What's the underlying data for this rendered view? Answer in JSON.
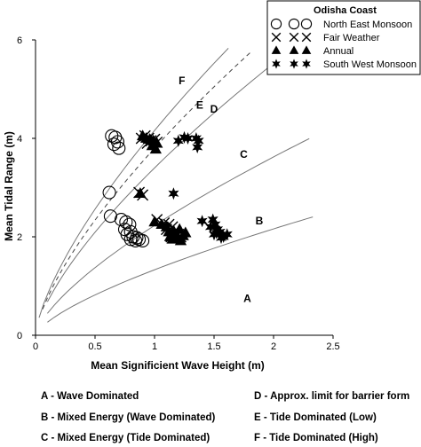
{
  "chart_data": {
    "type": "scatter",
    "xlabel": "Mean Significient Wave Height (m)",
    "ylabel": "Mean Tidal Range (m)",
    "xlim": [
      0,
      2.5
    ],
    "ylim": [
      0,
      6
    ],
    "xticks": [
      "0",
      "0.5",
      "1",
      "1.5",
      "2",
      "2.5"
    ],
    "yticks": [
      "0",
      "2",
      "4",
      "6"
    ],
    "grid": false,
    "legend": {
      "title": "Odisha Coast",
      "placement": "top-right",
      "entries": [
        {
          "label": "North East Monsoon",
          "marker": "circle-open"
        },
        {
          "label": "Fair Weather",
          "marker": "cross"
        },
        {
          "label": "Annual",
          "marker": "triangle-filled"
        },
        {
          "label": "South West Monsoon",
          "marker": "star-filled"
        }
      ]
    },
    "series": [
      {
        "name": "North East Monsoon",
        "marker": "circle-open",
        "points": [
          [
            0.64,
            4.05
          ],
          [
            0.67,
            4.02
          ],
          [
            0.69,
            3.93
          ],
          [
            0.66,
            3.88
          ],
          [
            0.7,
            3.8
          ],
          [
            0.62,
            2.9
          ],
          [
            0.63,
            2.42
          ],
          [
            0.72,
            2.35
          ],
          [
            0.76,
            2.3
          ],
          [
            0.79,
            2.25
          ],
          [
            0.75,
            2.15
          ],
          [
            0.8,
            2.1
          ],
          [
            0.77,
            2.05
          ],
          [
            0.82,
            2.0
          ],
          [
            0.85,
            1.98
          ],
          [
            0.87,
            1.95
          ],
          [
            0.8,
            1.95
          ],
          [
            0.84,
            1.92
          ],
          [
            0.9,
            1.92
          ]
        ]
      },
      {
        "name": "Fair Weather",
        "marker": "cross",
        "points": [
          [
            0.89,
            4.0
          ],
          [
            0.92,
            4.05
          ],
          [
            0.95,
            4.0
          ],
          [
            0.97,
            3.95
          ],
          [
            1.0,
            3.98
          ],
          [
            0.94,
            3.9
          ],
          [
            1.02,
            3.92
          ],
          [
            0.87,
            2.9
          ],
          [
            0.9,
            2.85
          ],
          [
            1.02,
            2.35
          ],
          [
            1.08,
            2.28
          ],
          [
            1.12,
            2.25
          ],
          [
            1.15,
            2.2
          ],
          [
            1.1,
            2.15
          ],
          [
            1.18,
            2.1
          ],
          [
            1.2,
            2.05
          ],
          [
            1.14,
            2.0
          ],
          [
            1.22,
            2.0
          ]
        ]
      },
      {
        "name": "Annual",
        "marker": "triangle-filled",
        "points": [
          [
            0.9,
            4.05
          ],
          [
            0.93,
            4.0
          ],
          [
            0.96,
            3.98
          ],
          [
            0.99,
            3.95
          ],
          [
            1.02,
            3.9
          ],
          [
            0.98,
            3.85
          ],
          [
            1.01,
            3.78
          ],
          [
            0.88,
            2.88
          ],
          [
            1.0,
            2.3
          ],
          [
            1.06,
            2.25
          ],
          [
            1.1,
            2.2
          ],
          [
            1.12,
            2.1
          ],
          [
            1.16,
            2.12
          ],
          [
            1.18,
            2.05
          ],
          [
            1.13,
            2.0
          ],
          [
            1.2,
            1.98
          ],
          [
            1.24,
            2.02
          ],
          [
            1.26,
            2.08
          ],
          [
            1.21,
            2.15
          ],
          [
            1.15,
            1.95
          ],
          [
            1.22,
            1.92
          ]
        ]
      },
      {
        "name": "South West Monsoon",
        "marker": "star-filled",
        "points": [
          [
            1.2,
            3.95
          ],
          [
            1.25,
            4.02
          ],
          [
            1.28,
            4.0
          ],
          [
            1.35,
            4.0
          ],
          [
            1.37,
            3.95
          ],
          [
            1.36,
            3.82
          ],
          [
            1.16,
            2.88
          ],
          [
            1.4,
            2.32
          ],
          [
            1.49,
            2.35
          ],
          [
            1.51,
            2.25
          ],
          [
            1.47,
            2.2
          ],
          [
            1.53,
            2.15
          ],
          [
            1.55,
            2.1
          ],
          [
            1.5,
            2.05
          ],
          [
            1.58,
            2.0
          ],
          [
            1.61,
            2.05
          ],
          [
            1.56,
            1.98
          ],
          [
            1.52,
            2.08
          ]
        ]
      }
    ],
    "boundary_curves": [
      {
        "style": "solid",
        "x_start": 0.03,
        "x_end": 1.62,
        "a": 4.16
      },
      {
        "style": "dashed",
        "x_start": 0.06,
        "x_end": 1.82,
        "a": 3.8
      },
      {
        "style": "solid",
        "x_start": 0.1,
        "x_end": 2.07,
        "a": 3.4
      },
      {
        "style": "solid",
        "x_start": 0.1,
        "x_end": 2.3,
        "a": 2.23
      },
      {
        "style": "solid",
        "x_start": 0.1,
        "x_end": 2.33,
        "a": 1.33
      }
    ],
    "region_labels": [
      {
        "text": "F",
        "x": 1.23,
        "y": 5.1
      },
      {
        "text": "E",
        "x": 1.38,
        "y": 4.6
      },
      {
        "text": "D",
        "x": 1.5,
        "y": 4.52
      },
      {
        "text": "C",
        "x": 1.75,
        "y": 3.6
      },
      {
        "text": "B",
        "x": 1.88,
        "y": 2.25
      },
      {
        "text": "A",
        "x": 1.78,
        "y": 0.68
      }
    ],
    "key": [
      {
        "text": "A - Wave Dominated"
      },
      {
        "text": "B - Mixed Energy (Wave Dominated)"
      },
      {
        "text": "C - Mixed Energy (Tide Dominated)"
      },
      {
        "text": "D - Approx. limit for barrier form"
      },
      {
        "text": "E - Tide Dominated (Low)"
      },
      {
        "text": "F - Tide Dominated (High)"
      }
    ]
  }
}
